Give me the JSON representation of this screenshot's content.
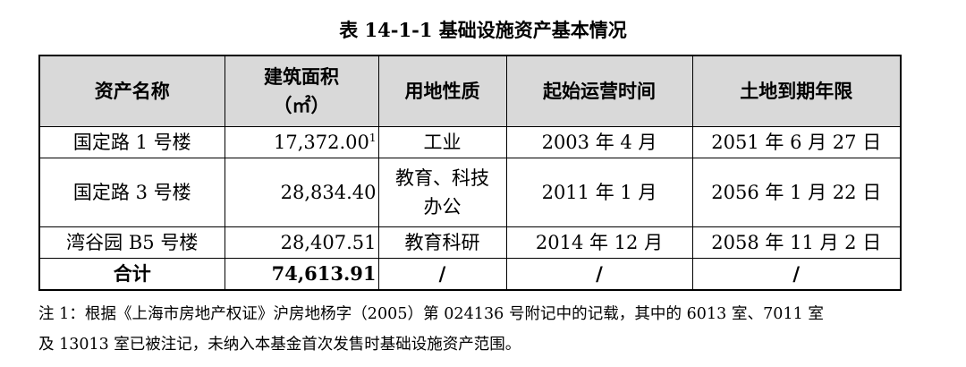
{
  "title": "表 14-1-1  基础设施资产基本情况",
  "headers": {
    "name": "资产名称",
    "area_line1": "建筑面积",
    "area_line2": "（㎡）",
    "land_use": "用地性质",
    "start_time": "起始运营时间",
    "land_expiry": "土地到期年限"
  },
  "rows": [
    {
      "name": "国定路 1 号楼",
      "area": "17,372.00",
      "area_note": "1",
      "land_use": "工业",
      "start": "2003 年 4 月",
      "expiry": "2051 年 6 月 27 日"
    },
    {
      "name": "国定路 3 号楼",
      "area": "28,834.40",
      "land_use_line1": "教育、科技",
      "land_use_line2": "办公",
      "start": "2011 年 1 月",
      "expiry": "2056 年 1 月 22 日"
    },
    {
      "name": "湾谷园 B5 号楼",
      "area": "28,407.51",
      "land_use": "教育科研",
      "start": "2014 年 12 月",
      "expiry": "2058 年 11 月 2 日"
    }
  ],
  "total": {
    "label": "合计",
    "area": "74,613.91",
    "land_use": "/",
    "start": "/",
    "expiry": "/"
  },
  "note": {
    "line1": "注 1：根据《上海市房地产权证》沪房地杨字（2005）第 024136 号附记中的记载，其中的 6013 室、7011 室",
    "line2": "及 13013 室已被注记，未纳入本基金首次发售时基础设施资产范围。"
  }
}
